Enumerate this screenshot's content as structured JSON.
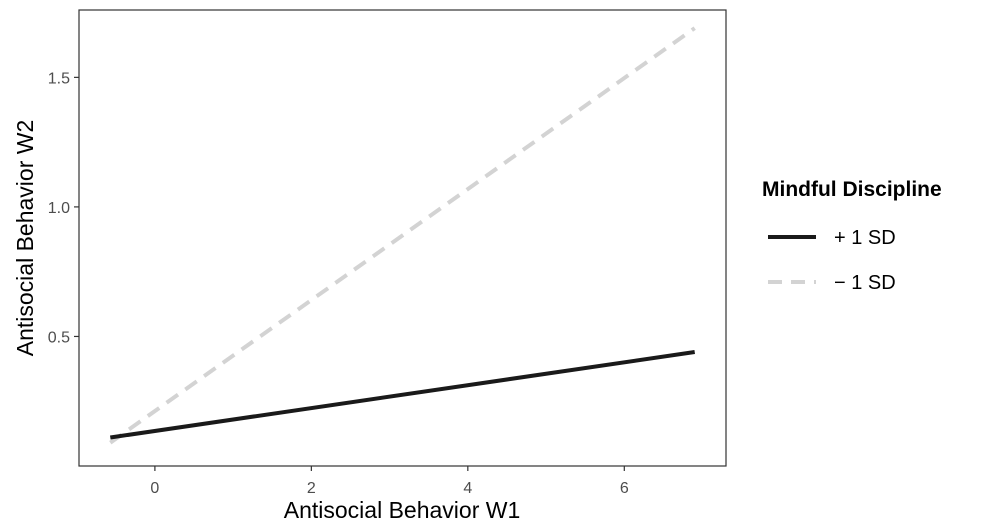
{
  "chart_data": {
    "type": "line",
    "title": "",
    "xlabel": "Antisocial Behavior W1",
    "ylabel": "Antisocial Behavior W2",
    "xlim": [
      -0.97,
      7.3
    ],
    "ylim": [
      0.0,
      1.76
    ],
    "x_ticks": [
      0,
      2,
      4,
      6
    ],
    "x_tick_labels": [
      "0",
      "2",
      "4",
      "6"
    ],
    "y_ticks": [
      0.5,
      1.0,
      1.5
    ],
    "y_tick_labels": [
      "0.5",
      "1.0",
      "1.5"
    ],
    "grid": false,
    "legend": {
      "title": "Mindful Discipline",
      "position": "right"
    },
    "series": [
      {
        "name": "+ 1 SD",
        "x": [
          -0.57,
          6.9
        ],
        "y": [
          0.11,
          0.44
        ],
        "color": "#1a1a1a",
        "dash": "solid"
      },
      {
        "name": "− 1 SD",
        "x": [
          -0.57,
          6.9
        ],
        "y": [
          0.09,
          1.69
        ],
        "color": "#d3d3d3",
        "dash": "dashed"
      }
    ]
  }
}
